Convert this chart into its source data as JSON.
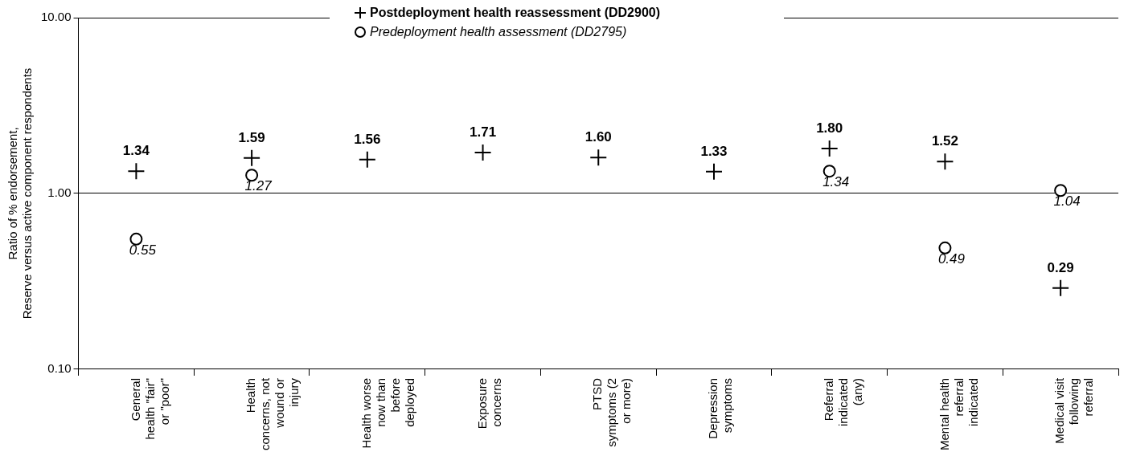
{
  "chart_data": {
    "type": "scatter",
    "ylabel": "Ratio of % endorsement,\nReserve versus active component respondents",
    "categories": [
      "General health \"fair\" or \"poor\"",
      "Health concerns, not wound or injury",
      "Health worse now than before deployed",
      "Exposure concerns",
      "PTSD symptoms (2 or more)",
      "Depression symptoms",
      "Referral indicated (any)",
      "Mental health referral indicated",
      "Medical visit following referral"
    ],
    "series": [
      {
        "name": "Postdeployment health reassessment (DD2900)",
        "color": "#000000",
        "marker": "cross",
        "values": [
          1.34,
          1.59,
          1.56,
          1.71,
          1.6,
          1.33,
          1.8,
          1.52,
          0.29
        ],
        "value_labels": [
          "1.34",
          "1.59",
          "1.56",
          "1.71",
          "1.60",
          "1.33",
          "1.80",
          "1.52",
          "0.29"
        ]
      },
      {
        "name": "Predeployment health assessment (DD2795)",
        "color": "#000000",
        "marker": "circle",
        "values": [
          0.55,
          1.27,
          null,
          null,
          null,
          null,
          1.34,
          0.49,
          1.04
        ],
        "value_labels": [
          "0.55",
          "1.27",
          null,
          null,
          null,
          null,
          "1.34",
          "0.49",
          "1.04"
        ]
      }
    ],
    "log": true,
    "ylim": [
      0.1,
      10
    ],
    "yticks": [
      {
        "value": 0.1,
        "label": "0.10"
      },
      {
        "value": 1,
        "label": "1.00"
      },
      {
        "value": 10,
        "label": "10.00"
      }
    ],
    "grid": "y",
    "legend": "top"
  }
}
